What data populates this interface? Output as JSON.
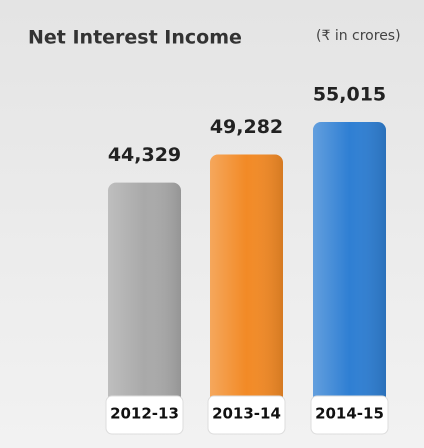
{
  "chart_data": {
    "type": "bar",
    "title": "Net Interest Income",
    "subtitle": "(₹ in crores)",
    "categories": [
      "2012-13",
      "2013-14",
      "2014-15"
    ],
    "values": [
      44329,
      49282,
      55015
    ],
    "value_labels": [
      "44,329",
      "49,282",
      "55,015"
    ],
    "colors": [
      "#a9a9a9",
      "#f28a26",
      "#2f7fd3"
    ]
  }
}
